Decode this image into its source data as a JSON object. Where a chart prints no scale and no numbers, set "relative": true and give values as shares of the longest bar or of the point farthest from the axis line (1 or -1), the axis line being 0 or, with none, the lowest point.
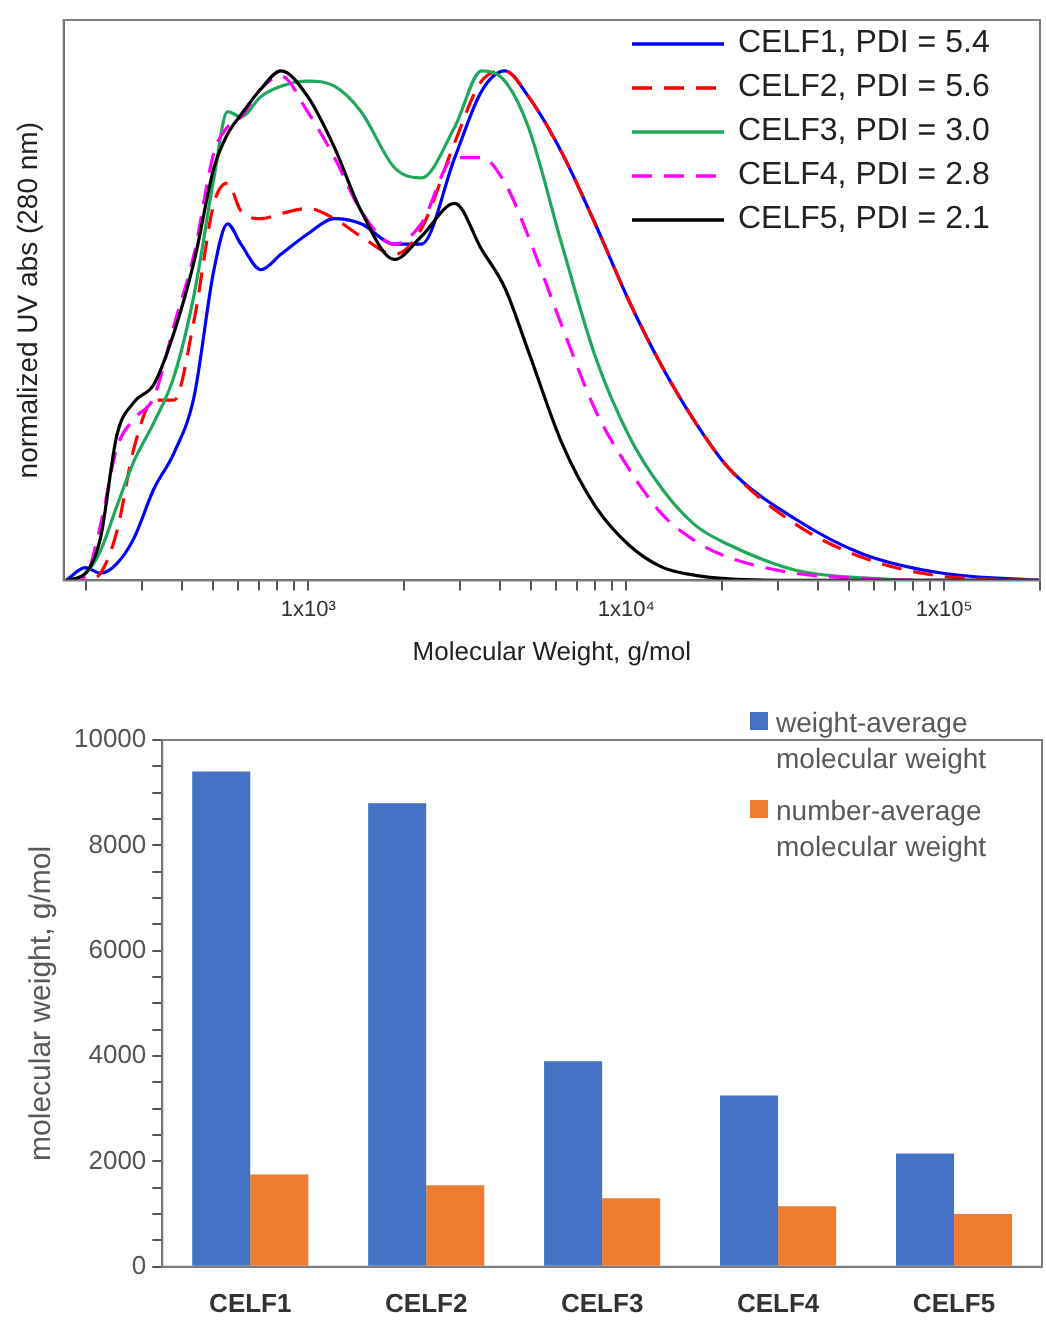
{
  "chart_data": [
    {
      "type": "line",
      "relative": true,
      "log": "x",
      "xlabel": "Molecular Weight, g/mol",
      "ylabel": "normalized UV abs (280 nm)",
      "legend": "top right",
      "xlim": [
        170,
        200000
      ],
      "xticks": [
        {
          "value": 200,
          "label": null
        },
        {
          "value": 300,
          "label": null
        },
        {
          "value": 400,
          "label": null
        },
        {
          "value": 500,
          "label": null
        },
        {
          "value": 600,
          "label": null
        },
        {
          "value": 700,
          "label": null
        },
        {
          "value": 800,
          "label": null
        },
        {
          "value": 900,
          "label": null
        },
        {
          "value": 1000,
          "label": "1x10³"
        },
        {
          "value": 2000,
          "label": null
        },
        {
          "value": 3000,
          "label": null
        },
        {
          "value": 4000,
          "label": null
        },
        {
          "value": 5000,
          "label": null
        },
        {
          "value": 6000,
          "label": null
        },
        {
          "value": 7000,
          "label": null
        },
        {
          "value": 8000,
          "label": null
        },
        {
          "value": 9000,
          "label": null
        },
        {
          "value": 10000,
          "label": "1x10⁴"
        },
        {
          "value": 20000,
          "label": null
        },
        {
          "value": 30000,
          "label": null
        },
        {
          "value": 40000,
          "label": null
        },
        {
          "value": 50000,
          "label": null
        },
        {
          "value": 60000,
          "label": null
        },
        {
          "value": 70000,
          "label": null
        },
        {
          "value": 80000,
          "label": null
        },
        {
          "value": 90000,
          "label": null
        },
        {
          "value": 100000,
          "label": "1x10⁵"
        },
        {
          "value": 200000,
          "label": null
        }
      ],
      "x": [
        173,
        199,
        222,
        250,
        283,
        327,
        378,
        437,
        505,
        557,
        614,
        710,
        820,
        995,
        1208,
        1466,
        1868,
        2266,
        2888,
        3505,
        4153,
        4920,
        6267,
        7983,
        10170,
        12950,
        16500,
        21020,
        34120,
        55380,
        99000,
        200000
      ],
      "series": [
        {
          "name": "CELF1, PDI = 5.4",
          "color": "#0000ff",
          "line_style": "solid",
          "values": [
            0,
            0.025,
            0.014,
            0.033,
            0.083,
            0.18,
            0.25,
            0.36,
            0.61,
            0.7,
            0.66,
            0.61,
            0.64,
            0.68,
            0.71,
            0.7,
            0.66,
            0.66,
            0.83,
            0.96,
            1,
            0.95,
            0.84,
            0.7,
            0.55,
            0.42,
            0.31,
            0.22,
            0.12,
            0.052,
            0.014,
            0
          ]
        },
        {
          "name": "CELF2, PDI = 5.6",
          "color": "#ff0000",
          "line_style": "dashed",
          "values": [
            0,
            0,
            0.014,
            0.096,
            0.26,
            0.354,
            0.354,
            0.51,
            0.74,
            0.78,
            0.725,
            0.71,
            0.72,
            0.73,
            0.71,
            0.675,
            0.64,
            0.69,
            0.86,
            0.98,
            1,
            0.95,
            0.84,
            0.7,
            0.55,
            0.42,
            0.31,
            0.22,
            0.11,
            0.045,
            0.008,
            0
          ]
        },
        {
          "name": "CELF3, PDI = 3.0",
          "color": "#1fa85a",
          "line_style": "solid",
          "values": [
            0,
            0.013,
            0.058,
            0.146,
            0.234,
            0.31,
            0.4,
            0.56,
            0.79,
            0.92,
            0.91,
            0.95,
            0.97,
            0.98,
            0.97,
            0.92,
            0.81,
            0.79,
            0.89,
            1,
            0.98,
            0.89,
            0.66,
            0.44,
            0.285,
            0.18,
            0.108,
            0.07,
            0.02,
            0.005,
            0,
            0
          ]
        },
        {
          "name": "CELF4, PDI = 2.8",
          "color": "#ff00ff",
          "line_style": "dashed",
          "values": [
            0,
            0.008,
            0.108,
            0.26,
            0.317,
            0.36,
            0.5,
            0.64,
            0.84,
            0.89,
            0.91,
            0.965,
            0.99,
            0.92,
            0.83,
            0.725,
            0.66,
            0.7,
            0.83,
            0.83,
            0.78,
            0.675,
            0.5,
            0.335,
            0.22,
            0.13,
            0.077,
            0.045,
            0.014,
            0.004,
            0,
            0
          ]
        },
        {
          "name": "CELF5, PDI = 2.1",
          "color": "#000000",
          "line_style": "solid",
          "values": [
            0,
            0.014,
            0.083,
            0.285,
            0.35,
            0.385,
            0.486,
            0.625,
            0.81,
            0.876,
            0.914,
            0.965,
            1,
            0.95,
            0.85,
            0.725,
            0.63,
            0.675,
            0.74,
            0.65,
            0.574,
            0.45,
            0.27,
            0.146,
            0.07,
            0.026,
            0.01,
            0.003,
            0,
            0,
            0,
            0
          ]
        }
      ]
    },
    {
      "type": "bar",
      "ylabel": "molecular weight, g/mol",
      "legend": "top right",
      "categories": [
        "CELF1",
        "CELF2",
        "CELF3",
        "CELF4",
        "CELF5"
      ],
      "ylim": [
        0,
        10000
      ],
      "yticks": [
        0,
        {
          "value": 500,
          "label": null
        },
        {
          "value": 1000,
          "label": null
        },
        {
          "value": 1500,
          "label": null
        },
        2000,
        {
          "value": 2500,
          "label": null
        },
        {
          "value": 3000,
          "label": null
        },
        {
          "value": 3500,
          "label": null
        },
        4000,
        {
          "value": 4500,
          "label": null
        },
        {
          "value": 5000,
          "label": null
        },
        {
          "value": 5500,
          "label": null
        },
        6000,
        {
          "value": 6500,
          "label": null
        },
        {
          "value": 7000,
          "label": null
        },
        {
          "value": 7500,
          "label": null
        },
        8000,
        {
          "value": 8500,
          "label": null
        },
        {
          "value": 9000,
          "label": null
        },
        {
          "value": 9500,
          "label": null
        },
        10000
      ],
      "series": [
        {
          "name": "weight-average molecular weight",
          "color": "#4472c4",
          "values": [
            9400,
            8800,
            3900,
            3250,
            2150
          ]
        },
        {
          "name": "number-average molecular weight",
          "color": "#ed7d31",
          "values": [
            1750,
            1550,
            1300,
            1150,
            1000
          ]
        }
      ]
    }
  ]
}
